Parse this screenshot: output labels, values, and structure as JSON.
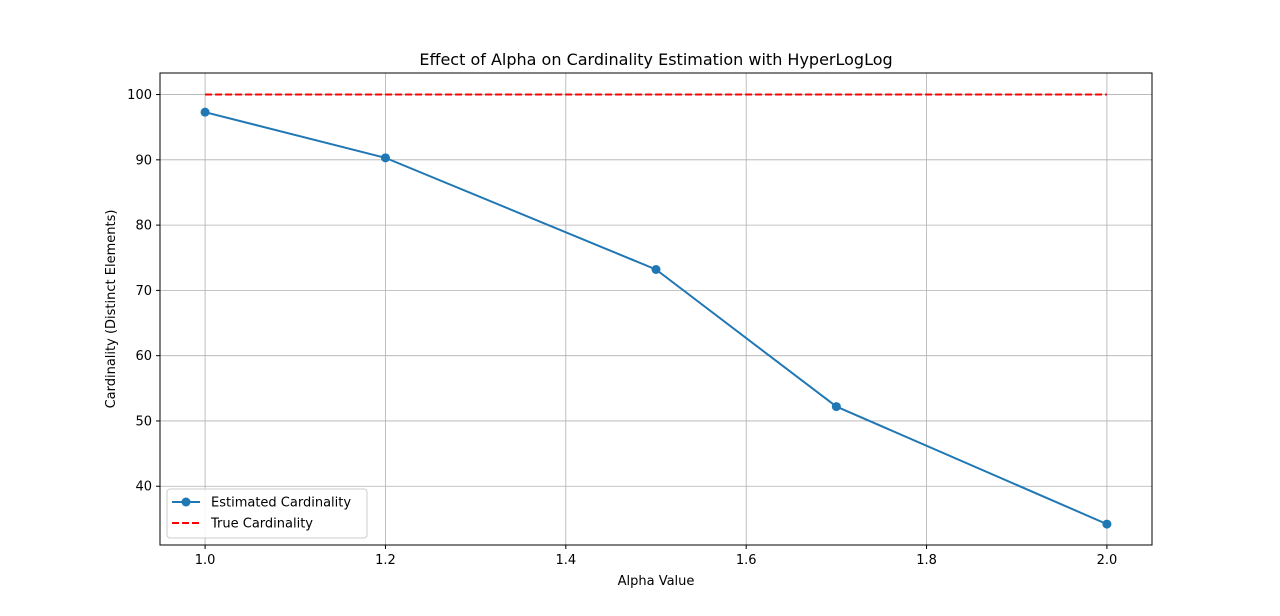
{
  "chart_data": {
    "type": "line",
    "title": "Effect of Alpha on Cardinality Estimation with HyperLogLog",
    "xlabel": "Alpha Value",
    "ylabel": "Cardinality (Distinct Elements)",
    "xlim": [
      0.95,
      2.05
    ],
    "ylim": [
      31,
      103.3
    ],
    "xticks": [
      1.0,
      1.2,
      1.4,
      1.6,
      1.8,
      2.0
    ],
    "xtick_labels": [
      "1.0",
      "1.2",
      "1.4",
      "1.6",
      "1.8",
      "2.0"
    ],
    "yticks": [
      40,
      50,
      60,
      70,
      80,
      90,
      100
    ],
    "ytick_labels": [
      "40",
      "50",
      "60",
      "70",
      "80",
      "90",
      "100"
    ],
    "grid": true,
    "legend_position": "lower-left",
    "series": [
      {
        "name": "Estimated Cardinality",
        "color": "#1f77b4",
        "style": "solid",
        "marker": "circle",
        "x": [
          1.0,
          1.2,
          1.5,
          1.7,
          2.0
        ],
        "y": [
          97.3,
          90.3,
          73.2,
          52.2,
          34.2
        ]
      },
      {
        "name": "True Cardinality",
        "color": "#ff0000",
        "style": "dashed",
        "marker": "none",
        "x": [
          1.0,
          2.0
        ],
        "y": [
          100,
          100
        ]
      }
    ]
  }
}
